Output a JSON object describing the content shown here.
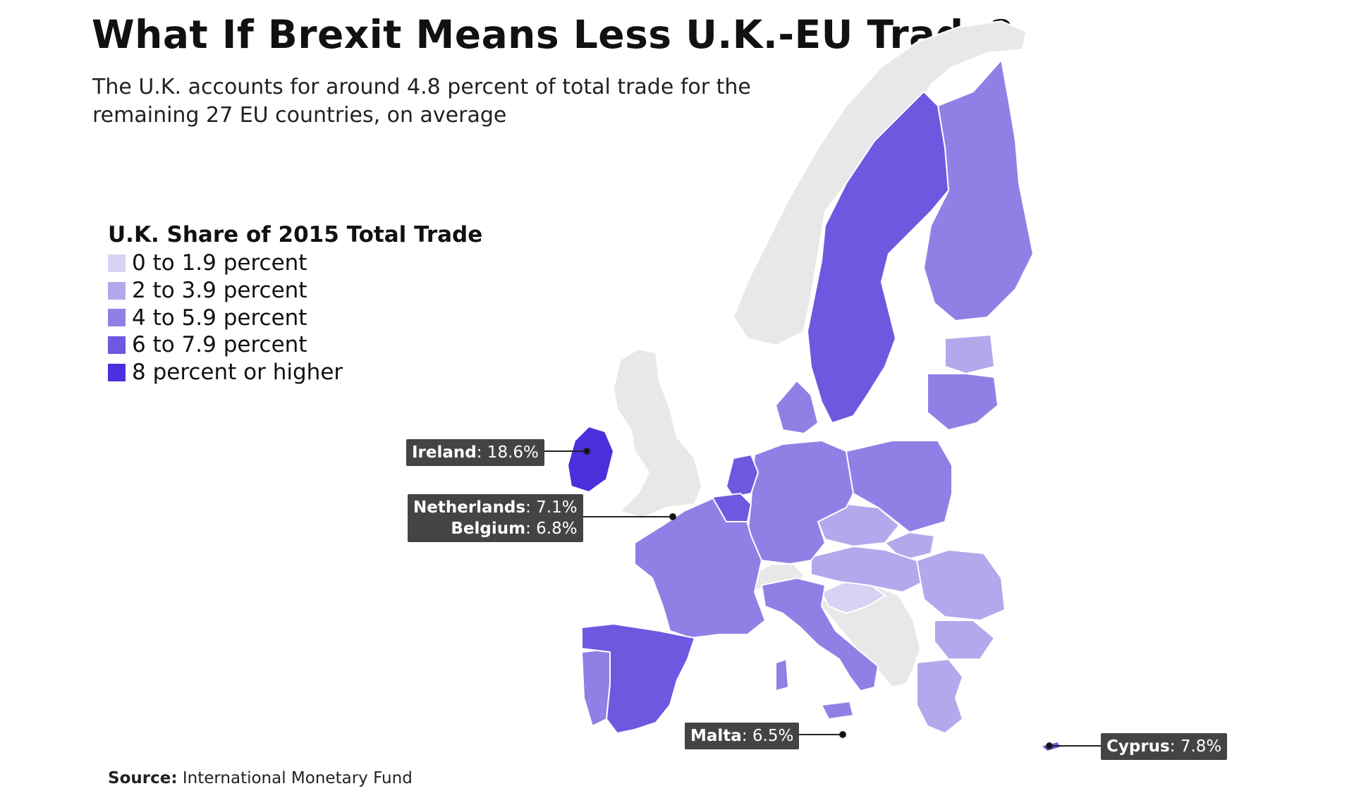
{
  "title": "What If Brexit Means Less U.K.-EU Trade?",
  "subtitle": "The U.K. accounts for around 4.8 percent of total trade for the remaining 27 EU countries, on average",
  "legend": {
    "title": "U.K. Share of 2015 Total Trade",
    "items": [
      {
        "label": "0 to 1.9 percent",
        "color": "#d8d2f4"
      },
      {
        "label": "2 to 3.9 percent",
        "color": "#b3a8ec"
      },
      {
        "label": "4 to 5.9 percent",
        "color": "#9080e6"
      },
      {
        "label": "6 to 7.9 percent",
        "color": "#6e58e0"
      },
      {
        "label": "8 percent or higher",
        "color": "#4b2fdc"
      }
    ]
  },
  "colors": {
    "non_eu": "#e8e8e8",
    "callout_bg": "#444444",
    "callout_text": "#ffffff"
  },
  "callouts": {
    "ireland": {
      "country": "Ireland",
      "value": ": 18.6%"
    },
    "netherlands": {
      "country": "Netherlands",
      "value": ": 7.1%"
    },
    "belgium": {
      "country": "Belgium",
      "value": ": 6.8%"
    },
    "malta": {
      "country": "Malta",
      "value": ": 6.5%"
    },
    "cyprus": {
      "country": "Cyprus",
      "value": ": 7.8%"
    }
  },
  "source": {
    "label": "Source:",
    "text": "International Monetary Fund"
  }
}
